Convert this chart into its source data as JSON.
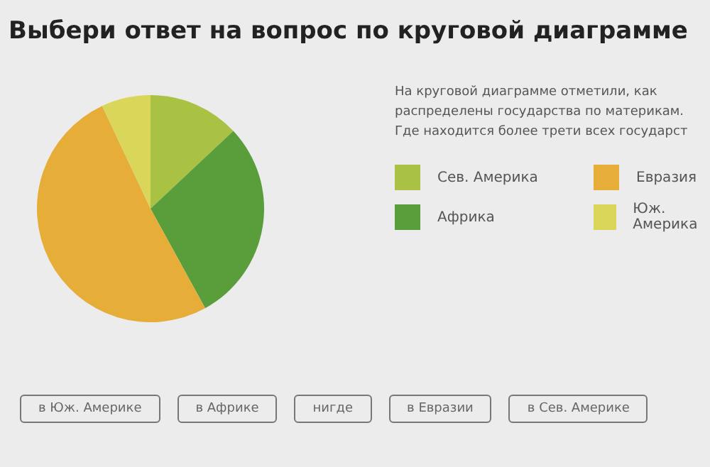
{
  "chart_data": {
    "type": "pie",
    "title": "Выбери ответ на вопрос по круговой диаграмме",
    "subtitle": "На круговой диаграмме отметили, как распределены государства по материкам. Где находится более трети всех государст",
    "categories": [
      "Сев. Америка",
      "Африка",
      "Евразия",
      "Юж. Америка"
    ],
    "values": [
      13,
      29,
      51,
      7
    ],
    "colors": [
      "#a9c244",
      "#5a9e3c",
      "#e6ad38",
      "#d9d65a"
    ],
    "legend": "right",
    "annotations": [
      "в Юж. Америке",
      "в Африке",
      "нигде",
      "в Евразии",
      "в Сев. Америке"
    ]
  }
}
